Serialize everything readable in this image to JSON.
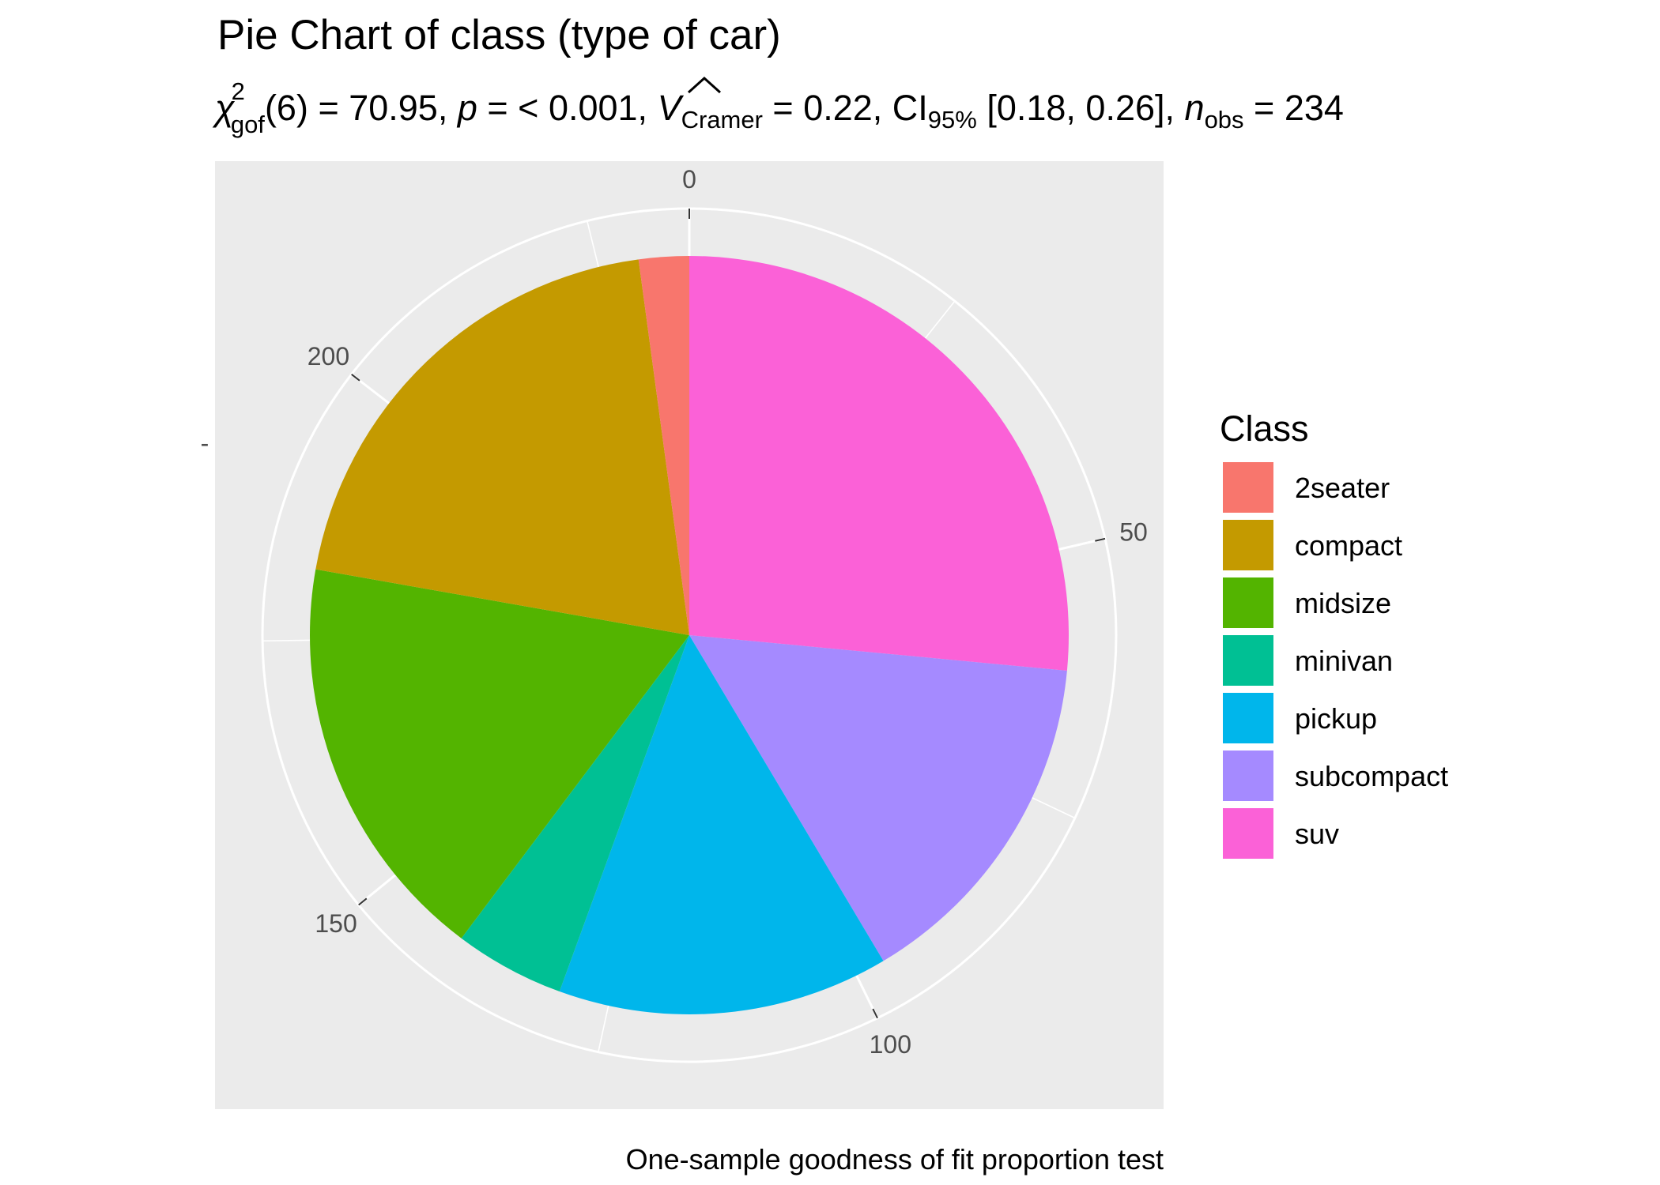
{
  "chart_data": {
    "type": "pie",
    "title": "Pie Chart of class (type of car)",
    "subtitle": {
      "chi_symbol": "χ",
      "chi_sup": "2",
      "chi_sub": "gof",
      "df_text": "(6) = 70.95, ",
      "p_symbol": "p",
      "p_text": " = < 0.001, ",
      "v_symbol": "V",
      "v_sub": "Cramer",
      "v_text": " = 0.22, CI",
      "ci_sub": "95%",
      "ci_text": " [0.18, 0.26], ",
      "n_symbol": "n",
      "n_sub": "obs",
      "n_text": " = 234"
    },
    "caption": "One-sample goodness of fit proportion test",
    "y_axis_tick_mark": "-",
    "angle_axis": {
      "range": [
        0,
        234
      ],
      "tick_values": [
        0,
        50,
        100,
        150,
        200
      ],
      "tick_labels": [
        "0",
        "50",
        "100",
        "150",
        "200"
      ],
      "direction": "clockwise",
      "start": "top"
    },
    "grid": true,
    "legend": {
      "title": "Class",
      "position": "right"
    },
    "categories": [
      "2seater",
      "compact",
      "midsize",
      "minivan",
      "pickup",
      "subcompact",
      "suv"
    ],
    "values": [
      5,
      47,
      41,
      11,
      33,
      35,
      62
    ],
    "colors": [
      "#F8766D",
      "#C49A00",
      "#53B400",
      "#00C094",
      "#00B6EB",
      "#A58AFF",
      "#FB61D7"
    ],
    "stack_order_from_top_clockwise": [
      "suv",
      "subcompact",
      "pickup",
      "minivan",
      "midsize",
      "compact",
      "2seater"
    ],
    "panel_background": "#EBEBEB",
    "grid_color": "#FFFFFF"
  }
}
